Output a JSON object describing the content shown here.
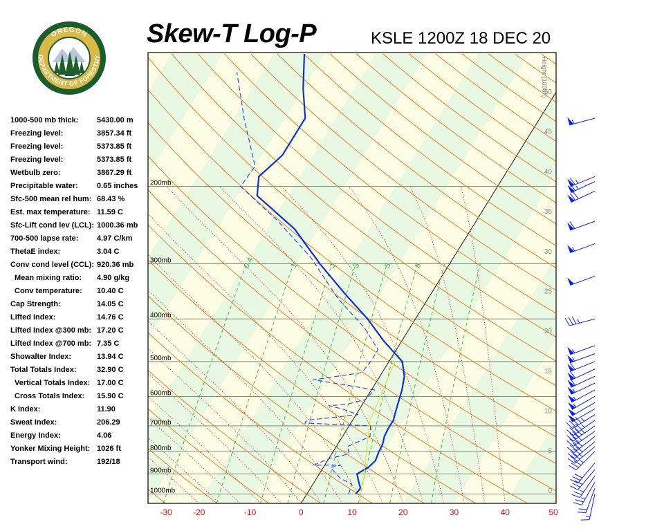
{
  "header": {
    "title": "Skew-T Log-P",
    "station": "KSLE 1200Z 18 DEC 20"
  },
  "logo": {
    "top_text": "OREGON",
    "bottom_text": "DEPARTMENT OF FORESTRY",
    "colors": {
      "ring": "#1a5c2e",
      "fill": "#d8b94a",
      "tree": "#1d5e2a"
    }
  },
  "indices": [
    {
      "label": "1000-500 mb thick:",
      "value": "5430.00 m",
      "indent": false
    },
    {
      "label": "Freezing level:",
      "value": "3857.34 ft",
      "indent": false
    },
    {
      "label": "Freezing level:",
      "value": "5373.85 ft",
      "indent": false
    },
    {
      "label": "Freezing level:",
      "value": "5373.85 ft",
      "indent": false
    },
    {
      "label": "Wetbulb zero:",
      "value": "3867.29 ft",
      "indent": false
    },
    {
      "label": "Precipitable water:",
      "value": "0.65 inches",
      "indent": false
    },
    {
      "label": "Sfc-500 mean rel hum:",
      "value": "68.43 %",
      "indent": false
    },
    {
      "label": "Est. max temperature:",
      "value": "11.59 C",
      "indent": false
    },
    {
      "label": "Sfc-Lift cond lev (LCL):",
      "value": "1000.36 mb",
      "indent": false
    },
    {
      "label": "700-500 lapse rate:",
      "value": "4.97 C/km",
      "indent": false
    },
    {
      "label": "ThetaE index:",
      "value": "3.04 C",
      "indent": false
    },
    {
      "label": "Conv cond level (CCL):",
      "value": "920.36 mb",
      "indent": false
    },
    {
      "label": "Mean mixing ratio:",
      "value": "4.90 g/kg",
      "indent": true
    },
    {
      "label": "Conv temperature:",
      "value": "10.40 C",
      "indent": true
    },
    {
      "label": "Cap Strength:",
      "value": "14.05 C",
      "indent": false
    },
    {
      "label": "Lifted Index:",
      "value": "14.76 C",
      "indent": false
    },
    {
      "label": "Lifted Index @300 mb:",
      "value": "17.20 C",
      "indent": false
    },
    {
      "label": "Lifted Index @700 mb:",
      "value": "7.35 C",
      "indent": false
    },
    {
      "label": "Showalter Index:",
      "value": "13.94 C",
      "indent": false
    },
    {
      "label": "Total Totals Index:",
      "value": "32.90 C",
      "indent": false
    },
    {
      "label": "Vertical Totals Index:",
      "value": "17.00 C",
      "indent": true
    },
    {
      "label": "Cross Totals Index:",
      "value": "15.90 C",
      "indent": true
    },
    {
      "label": "K Index:",
      "value": "11.90",
      "indent": false
    },
    {
      "label": "Sweat Index:",
      "value": "206.29",
      "indent": false
    },
    {
      "label": "Energy Index:",
      "value": "4.06",
      "indent": false
    },
    {
      "label": "Yonker Mixing Height:",
      "value": "1026 ft",
      "indent": false
    },
    {
      "label": "Transport wind:",
      "value": "192/18",
      "indent": false
    }
  ],
  "chart_data": {
    "type": "line",
    "xlim": [
      -30,
      50
    ],
    "ylim_mb": [
      1050,
      100
    ],
    "x_ticks": [
      -30,
      -20,
      -10,
      0,
      10,
      20,
      30,
      40,
      50
    ],
    "pressure_levels": [
      1000,
      900,
      800,
      700,
      600,
      500,
      400,
      300,
      200
    ],
    "pressure_labels": [
      "1000mb",
      "900mb",
      "800mb",
      "700mb",
      "600mb",
      "500mb",
      "400mb",
      "300mb",
      "200mb"
    ],
    "height_axis_label": "Height (1000ft)",
    "height_ticks": [
      "0",
      "5",
      "10",
      "15",
      "20",
      "25",
      "30",
      "35",
      "40",
      "45",
      "50"
    ],
    "mixing_ratio_labels": [
      "0.4",
      "1",
      "2",
      "3",
      "5",
      "8"
    ],
    "colors": {
      "temperature": "#1030d0",
      "dewpoint": "#2040e0",
      "parcel": "#e0e040",
      "dry_adiabat": "#e07818",
      "moist_adiabat": "#c83030",
      "mixing_ratio": "#40b040",
      "temp_label": "#d01010",
      "band_a": "#fdfde6",
      "band_b": "#e8f8e2"
    },
    "series": [
      {
        "name": "",
        "style": "temperature",
        "points": [
          [
            9.6,
            1000
          ],
          [
            9.8,
            970
          ],
          [
            8.4,
            930
          ],
          [
            7.4,
            900
          ],
          [
            8.8,
            870
          ],
          [
            9.4,
            840
          ],
          [
            9.0,
            805
          ],
          [
            8.8,
            770
          ],
          [
            8.2,
            740
          ],
          [
            8.0,
            710
          ],
          [
            8.0,
            680
          ],
          [
            7.4,
            650
          ],
          [
            6.8,
            620
          ],
          [
            6.0,
            580
          ],
          [
            4.8,
            540
          ],
          [
            2.6,
            500
          ],
          [
            -3.4,
            450
          ],
          [
            -9.4,
            400
          ],
          [
            -17.0,
            350
          ],
          [
            -25.4,
            300
          ],
          [
            -34.6,
            250
          ],
          [
            -46.0,
            210
          ],
          [
            -48.0,
            190
          ],
          [
            -46.0,
            170
          ],
          [
            -46.0,
            140
          ],
          [
            -50.0,
            120
          ],
          [
            -54.0,
            100
          ]
        ]
      },
      {
        "name": "",
        "style": "dewpoint",
        "points": [
          [
            8.2,
            1000
          ],
          [
            7.6,
            950
          ],
          [
            4.6,
            920
          ],
          [
            1.4,
            870
          ],
          [
            3.2,
            860
          ],
          [
            -2.2,
            860
          ],
          [
            0.2,
            830
          ],
          [
            3.4,
            810
          ],
          [
            2.2,
            780
          ],
          [
            5.4,
            740
          ],
          [
            4.2,
            700
          ],
          [
            -9.0,
            690
          ],
          [
            -9.0,
            680
          ],
          [
            0.4,
            660
          ],
          [
            -3.6,
            640
          ],
          [
            -6.4,
            630
          ],
          [
            -3.0,
            625
          ],
          [
            0.0,
            610
          ],
          [
            0.6,
            580
          ],
          [
            -5.8,
            565
          ],
          [
            -12.6,
            550
          ],
          [
            -4.0,
            530
          ],
          [
            -3.6,
            500
          ],
          [
            -3.6,
            470
          ],
          [
            -8.8,
            420
          ],
          [
            -17.6,
            360
          ],
          [
            -28.0,
            290
          ],
          [
            -38.8,
            240
          ],
          [
            -50.4,
            200
          ],
          [
            -50.0,
            180
          ],
          [
            -58.0,
            140
          ],
          [
            -65.0,
            110
          ]
        ]
      },
      {
        "name": "",
        "style": "parcel",
        "points": [
          [
            10.4,
            1000
          ],
          [
            9.2,
            920
          ],
          [
            7.0,
            820
          ],
          [
            5.0,
            740
          ],
          [
            3.4,
            680
          ],
          [
            2.8,
            620
          ],
          [
            2.0,
            560
          ],
          [
            1.2,
            500
          ]
        ]
      }
    ],
    "wind_barbs": [
      {
        "p": 1000,
        "dir": 192,
        "spd": 15
      },
      {
        "p": 970,
        "dir": 200,
        "spd": 20
      },
      {
        "p": 940,
        "dir": 210,
        "spd": 25
      },
      {
        "p": 910,
        "dir": 215,
        "spd": 25
      },
      {
        "p": 880,
        "dir": 220,
        "spd": 30
      },
      {
        "p": 850,
        "dir": 220,
        "spd": 30
      },
      {
        "p": 800,
        "dir": 225,
        "spd": 35
      },
      {
        "p": 780,
        "dir": 230,
        "spd": 35
      },
      {
        "p": 760,
        "dir": 230,
        "spd": 40
      },
      {
        "p": 740,
        "dir": 232,
        "spd": 40
      },
      {
        "p": 720,
        "dir": 235,
        "spd": 40
      },
      {
        "p": 700,
        "dir": 235,
        "spd": 45
      },
      {
        "p": 680,
        "dir": 235,
        "spd": 45
      },
      {
        "p": 660,
        "dir": 238,
        "spd": 45
      },
      {
        "p": 640,
        "dir": 240,
        "spd": 50
      },
      {
        "p": 620,
        "dir": 240,
        "spd": 50
      },
      {
        "p": 600,
        "dir": 240,
        "spd": 55
      },
      {
        "p": 580,
        "dir": 242,
        "spd": 55
      },
      {
        "p": 560,
        "dir": 245,
        "spd": 55
      },
      {
        "p": 540,
        "dir": 245,
        "spd": 60
      },
      {
        "p": 520,
        "dir": 245,
        "spd": 60
      },
      {
        "p": 500,
        "dir": 248,
        "spd": 60
      },
      {
        "p": 480,
        "dir": 250,
        "spd": 55
      },
      {
        "p": 460,
        "dir": 250,
        "spd": 55
      },
      {
        "p": 400,
        "dir": 255,
        "spd": 35
      },
      {
        "p": 320,
        "dir": 250,
        "spd": 50
      },
      {
        "p": 270,
        "dir": 250,
        "spd": 55
      },
      {
        "p": 240,
        "dir": 250,
        "spd": 60
      },
      {
        "p": 205,
        "dir": 245,
        "spd": 70
      },
      {
        "p": 195,
        "dir": 245,
        "spd": 65
      },
      {
        "p": 190,
        "dir": 248,
        "spd": 65
      },
      {
        "p": 140,
        "dir": 255,
        "spd": 55
      }
    ]
  }
}
